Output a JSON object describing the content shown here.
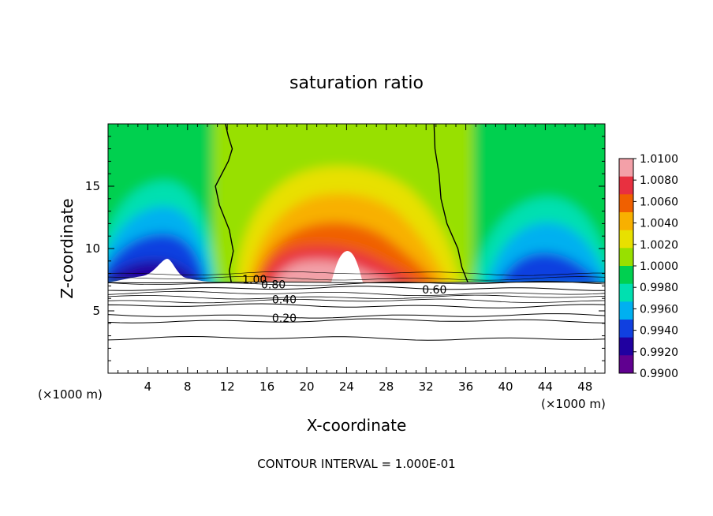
{
  "chart_data": {
    "type": "heatmap",
    "title": "saturation ratio",
    "xlabel": "X-coordinate",
    "ylabel": "Z-coordinate",
    "x_unit": "(×1000 m)",
    "x_unit_right": "(×1000 m)",
    "xlim": [
      0,
      50
    ],
    "ylim": [
      0,
      20
    ],
    "x_ticks": [
      4,
      8,
      12,
      16,
      20,
      24,
      28,
      32,
      36,
      40,
      44,
      48
    ],
    "y_ticks": [
      5,
      10,
      15
    ],
    "colorbar": {
      "vmin": 0.99,
      "vmax": 1.01,
      "labels": [
        "1.0100",
        "1.0080",
        "1.0060",
        "1.0040",
        "1.0020",
        "1.0000",
        "0.9980",
        "0.9960",
        "0.9940",
        "0.9920",
        "0.9900"
      ],
      "colors": [
        "#f3a0a8",
        "#e83040",
        "#f06000",
        "#f8b000",
        "#e8e000",
        "#98e000",
        "#00d050",
        "#00e0b0",
        "#00b0f0",
        "#1040e0",
        "#2000a0",
        "#600090"
      ]
    },
    "contour_labels": [
      {
        "text": "1.00",
        "x": 13.5,
        "y": 7.2
      },
      {
        "text": "0.80",
        "x": 15.4,
        "y": 6.8
      },
      {
        "text": "0.60",
        "x": 31.6,
        "y": 6.4
      },
      {
        "text": "0.40",
        "x": 16.5,
        "y": 5.6
      },
      {
        "text": "0.20",
        "x": 16.5,
        "y": 4.1
      }
    ],
    "boundary_contours": [
      {
        "points": [
          [
            11.8,
            20
          ],
          [
            12.1,
            19
          ],
          [
            12.5,
            18
          ],
          [
            12.1,
            17
          ],
          [
            10.8,
            15
          ],
          [
            11.2,
            13.5
          ],
          [
            12.2,
            11.5
          ],
          [
            12.6,
            9.8
          ],
          [
            12.2,
            8.2
          ],
          [
            12.4,
            7.3
          ]
        ]
      },
      {
        "points": [
          [
            32.8,
            20
          ],
          [
            32.9,
            18
          ],
          [
            33.3,
            16
          ],
          [
            33.5,
            14
          ],
          [
            34.1,
            12
          ],
          [
            35.2,
            10
          ],
          [
            35.6,
            8.5
          ],
          [
            36.2,
            7.3
          ]
        ]
      }
    ]
  },
  "footer": {
    "contour_interval": "CONTOUR INTERVAL = 1.000E-01"
  }
}
